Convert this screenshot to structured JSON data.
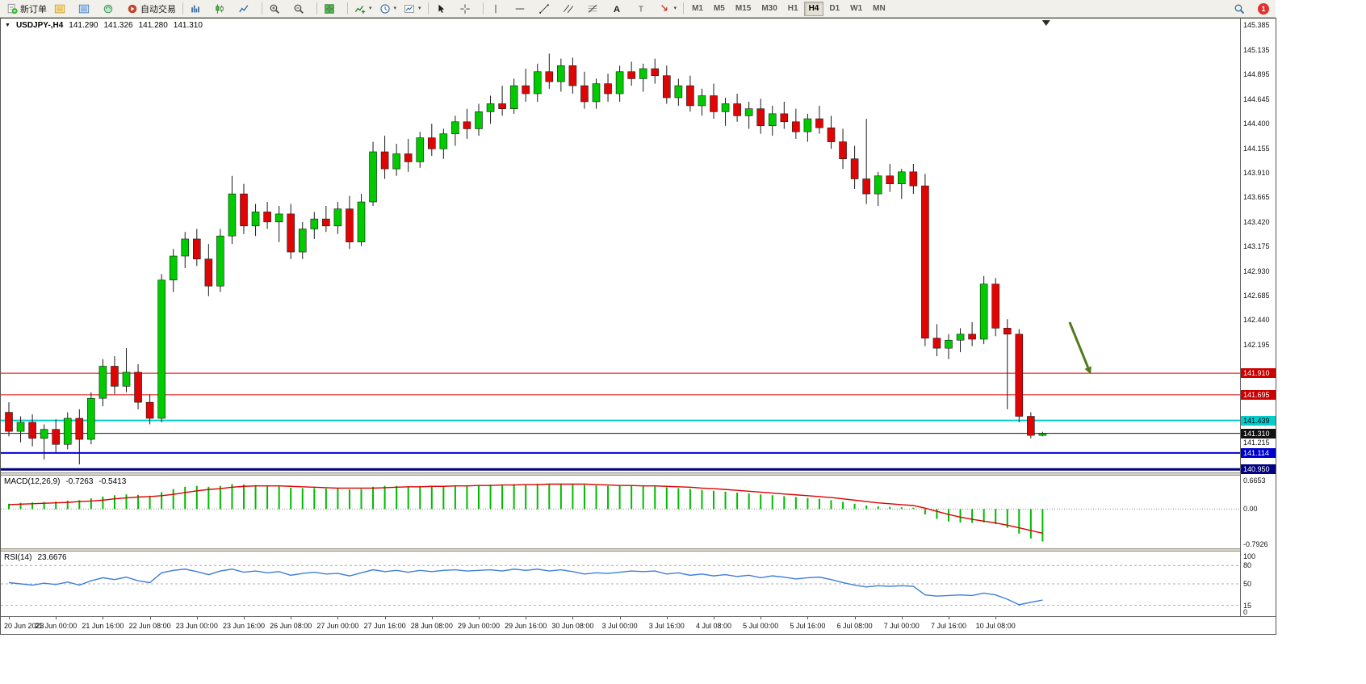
{
  "toolbar": {
    "groups": [
      {
        "items": [
          {
            "name": "new-order-button",
            "icon": "new-order-icon",
            "label": "新订单"
          },
          {
            "name": "market-watch-button",
            "icon": "market-watch-icon"
          },
          {
            "name": "data-window-button",
            "icon": "data-window-icon"
          },
          {
            "name": "navigator-button",
            "icon": "navigator-icon"
          },
          {
            "name": "autotrading-button",
            "icon": "autotrading-icon",
            "label": "自动交易"
          }
        ]
      },
      {
        "items": [
          {
            "name": "bar-chart-button",
            "icon": "bar-chart-icon"
          },
          {
            "name": "candlestick-chart-button",
            "icon": "candlestick-chart-icon"
          },
          {
            "name": "line-chart-button",
            "icon": "line-chart-icon"
          }
        ]
      },
      {
        "items": [
          {
            "name": "zoom-in-button",
            "icon": "zoom-in-icon"
          },
          {
            "name": "zoom-out-button",
            "icon": "zoom-out-icon"
          }
        ]
      },
      {
        "items": [
          {
            "name": "tile-windows-button",
            "icon": "tile-windows-icon"
          }
        ]
      },
      {
        "items": [
          {
            "name": "indicators-button",
            "icon": "indicators-icon",
            "dropdown": true
          },
          {
            "name": "periods-button",
            "icon": "periods-icon",
            "dropdown": true
          },
          {
            "name": "templates-button",
            "icon": "templates-icon",
            "dropdown": true
          }
        ]
      },
      {
        "items": [
          {
            "name": "cursor-button",
            "icon": "cursor-icon"
          },
          {
            "name": "crosshair-button",
            "icon": "crosshair-icon"
          }
        ]
      },
      {
        "items": [
          {
            "name": "vertical-line-button",
            "icon": "vline-icon"
          },
          {
            "name": "horizontal-line-button",
            "icon": "hline-icon"
          },
          {
            "name": "trendline-button",
            "icon": "trendline-icon"
          },
          {
            "name": "equidistant-channel-button",
            "icon": "channel-icon"
          },
          {
            "name": "fibonacci-button",
            "icon": "fibonacci-icon"
          },
          {
            "name": "text-button",
            "icon": "text-icon"
          },
          {
            "name": "text-label-button",
            "icon": "label-icon"
          },
          {
            "name": "arrows-button",
            "icon": "arrows-icon",
            "dropdown": true
          }
        ]
      }
    ],
    "timeframes": [
      "M1",
      "M5",
      "M15",
      "M30",
      "H1",
      "H4",
      "D1",
      "W1",
      "MN"
    ],
    "active_timeframe": "H4",
    "notification_count": "1"
  },
  "header": {
    "collapse_glyph": "▼",
    "symbol_period": "USDJPY-,H4",
    "open": "141.290",
    "high": "141.326",
    "low": "141.280",
    "close": "141.310"
  },
  "indicators": {
    "macd": {
      "label": "MACD(12,26,9)",
      "main": "-0.7263",
      "signal": "-0.5413",
      "axis": [
        "0.6653",
        "0.00",
        "-0.7926"
      ]
    },
    "rsi": {
      "label": "RSI(14)",
      "value": "23.6676",
      "axis": [
        "100",
        "80",
        "50",
        "15",
        "0"
      ]
    }
  },
  "price_axis": {
    "ticks": [
      "145.385",
      "145.135",
      "144.895",
      "144.645",
      "144.400",
      "144.155",
      "143.910",
      "143.665",
      "143.420",
      "143.175",
      "142.930",
      "142.685",
      "142.440",
      "142.195",
      "141.215"
    ]
  },
  "levels": [
    {
      "price": 141.91,
      "label": "141.910",
      "line_color": "#e00000",
      "label_bg": "#cc0000",
      "label_fg": "#ffffff",
      "width": 1,
      "name": "resistance-line-141910"
    },
    {
      "price": 141.695,
      "label": "141.695",
      "line_color": "#e00000",
      "label_bg": "#cc0000",
      "label_fg": "#ffffff",
      "width": 1,
      "name": "resistance-line-141695"
    },
    {
      "price": 141.439,
      "label": "141.439",
      "line_color": "#00cccc",
      "label_bg": "#00cccc",
      "label_fg": "#000000",
      "width": 2,
      "name": "support-line-141439"
    },
    {
      "price": 141.31,
      "label": "141.310",
      "line_color": "#151515",
      "label_bg": "#111111",
      "label_fg": "#ffffff",
      "width": 1,
      "name": "current-price-line"
    },
    {
      "price": 141.114,
      "label": "141.114",
      "line_color": "#0000dd",
      "label_bg": "#0000cc",
      "label_fg": "#ffffff",
      "width": 2,
      "name": "support-line-141114"
    },
    {
      "price": 140.95,
      "label": "140.950",
      "line_color": "#000080",
      "label_bg": "#000080",
      "label_fg": "#ffffff",
      "width": 3,
      "name": "support-line-140950"
    }
  ],
  "chart_data": [
    {
      "type": "candlestick",
      "title": "USDJPY-,H4",
      "ylim": [
        140.92,
        145.45
      ],
      "x_labels": [
        "20 Jun 2023",
        "21 Jun 00:00",
        "21 Jun 16:00",
        "22 Jun 08:00",
        "23 Jun 00:00",
        "23 Jun 16:00",
        "26 Jun 08:00",
        "27 Jun 00:00",
        "27 Jun 16:00",
        "28 Jun 08:00",
        "29 Jun 00:00",
        "29 Jun 16:00",
        "30 Jun 08:00",
        "3 Jul 00:00",
        "3 Jul 16:00",
        "4 Jul 08:00",
        "5 Jul 00:00",
        "5 Jul 16:00",
        "6 Jul 08:00",
        "7 Jul 00:00",
        "7 Jul 16:00",
        "10 Jul 08:00"
      ],
      "x_label_every": 4,
      "up_color": "#00ca00",
      "down_color": "#e00505",
      "ohlc": [
        [
          141.52,
          141.62,
          141.28,
          141.33
        ],
        [
          141.33,
          141.48,
          141.22,
          141.42
        ],
        [
          141.42,
          141.5,
          141.18,
          141.26
        ],
        [
          141.26,
          141.4,
          141.05,
          141.35
        ],
        [
          141.35,
          141.45,
          141.12,
          141.2
        ],
        [
          141.2,
          141.52,
          141.15,
          141.46
        ],
        [
          141.46,
          141.55,
          141.0,
          141.25
        ],
        [
          141.25,
          141.72,
          141.2,
          141.66
        ],
        [
          141.66,
          142.05,
          141.58,
          141.98
        ],
        [
          141.98,
          142.08,
          141.7,
          141.78
        ],
        [
          141.78,
          142.16,
          141.72,
          141.92
        ],
        [
          141.92,
          142.0,
          141.55,
          141.62
        ],
        [
          141.62,
          141.7,
          141.4,
          141.46
        ],
        [
          141.46,
          142.9,
          141.42,
          142.84
        ],
        [
          142.84,
          143.15,
          142.72,
          143.08
        ],
        [
          143.08,
          143.32,
          142.96,
          143.25
        ],
        [
          143.25,
          143.35,
          142.98,
          143.05
        ],
        [
          143.05,
          143.2,
          142.68,
          142.78
        ],
        [
          142.78,
          143.35,
          142.72,
          143.28
        ],
        [
          143.28,
          143.88,
          143.2,
          143.7
        ],
        [
          143.7,
          143.8,
          143.3,
          143.38
        ],
        [
          143.38,
          143.6,
          143.28,
          143.52
        ],
        [
          143.52,
          143.62,
          143.35,
          143.42
        ],
        [
          143.42,
          143.58,
          143.22,
          143.5
        ],
        [
          143.5,
          143.6,
          143.05,
          143.12
        ],
        [
          143.12,
          143.42,
          143.05,
          143.35
        ],
        [
          143.35,
          143.52,
          143.25,
          143.45
        ],
        [
          143.45,
          143.58,
          143.32,
          143.38
        ],
        [
          143.38,
          143.62,
          143.3,
          143.55
        ],
        [
          143.55,
          143.68,
          143.15,
          143.22
        ],
        [
          143.22,
          143.7,
          143.18,
          143.62
        ],
        [
          143.62,
          144.22,
          143.58,
          144.12
        ],
        [
          144.12,
          144.28,
          143.85,
          143.95
        ],
        [
          143.95,
          144.2,
          143.88,
          144.1
        ],
        [
          144.1,
          144.25,
          143.92,
          144.02
        ],
        [
          144.02,
          144.32,
          143.96,
          144.26
        ],
        [
          144.26,
          144.4,
          144.08,
          144.15
        ],
        [
          144.15,
          144.35,
          144.05,
          144.3
        ],
        [
          144.3,
          144.48,
          144.18,
          144.42
        ],
        [
          144.42,
          144.55,
          144.25,
          144.35
        ],
        [
          144.35,
          144.6,
          144.28,
          144.52
        ],
        [
          144.52,
          144.68,
          144.4,
          144.6
        ],
        [
          144.6,
          144.78,
          144.48,
          144.55
        ],
        [
          144.55,
          144.85,
          144.5,
          144.78
        ],
        [
          144.78,
          144.95,
          144.62,
          144.7
        ],
        [
          144.7,
          145.0,
          144.62,
          144.92
        ],
        [
          144.92,
          145.1,
          144.75,
          144.82
        ],
        [
          144.82,
          145.05,
          144.72,
          144.98
        ],
        [
          144.98,
          145.06,
          144.7,
          144.78
        ],
        [
          144.78,
          144.92,
          144.55,
          144.62
        ],
        [
          144.62,
          144.85,
          144.55,
          144.8
        ],
        [
          144.8,
          144.9,
          144.62,
          144.7
        ],
        [
          144.7,
          144.98,
          144.62,
          144.92
        ],
        [
          144.92,
          145.02,
          144.78,
          144.85
        ],
        [
          144.85,
          145.0,
          144.72,
          144.95
        ],
        [
          144.95,
          145.05,
          144.8,
          144.88
        ],
        [
          144.88,
          144.98,
          144.6,
          144.66
        ],
        [
          144.66,
          144.85,
          144.58,
          144.78
        ],
        [
          144.78,
          144.88,
          144.52,
          144.58
        ],
        [
          144.58,
          144.75,
          144.48,
          144.68
        ],
        [
          144.68,
          144.8,
          144.45,
          144.52
        ],
        [
          144.52,
          144.66,
          144.38,
          144.6
        ],
        [
          144.6,
          144.7,
          144.42,
          144.48
        ],
        [
          144.48,
          144.62,
          144.35,
          144.55
        ],
        [
          144.55,
          144.65,
          144.3,
          144.38
        ],
        [
          144.38,
          144.58,
          144.28,
          144.5
        ],
        [
          144.5,
          144.62,
          144.35,
          144.42
        ],
        [
          144.42,
          144.55,
          144.25,
          144.32
        ],
        [
          144.32,
          144.5,
          144.22,
          144.45
        ],
        [
          144.45,
          144.58,
          144.3,
          144.36
        ],
        [
          144.36,
          144.48,
          144.15,
          144.22
        ],
        [
          144.22,
          144.35,
          143.95,
          144.05
        ],
        [
          144.05,
          144.18,
          143.75,
          143.85
        ],
        [
          143.85,
          144.45,
          143.6,
          143.7
        ],
        [
          143.7,
          143.92,
          143.58,
          143.88
        ],
        [
          143.88,
          144.0,
          143.72,
          143.8
        ],
        [
          143.8,
          143.95,
          143.65,
          143.92
        ],
        [
          143.92,
          144.0,
          143.7,
          143.78
        ],
        [
          143.78,
          143.9,
          142.18,
          142.26
        ],
        [
          142.26,
          142.4,
          142.08,
          142.16
        ],
        [
          142.16,
          142.3,
          142.05,
          142.24
        ],
        [
          142.24,
          142.36,
          142.12,
          142.3
        ],
        [
          142.3,
          142.42,
          142.18,
          142.25
        ],
        [
          142.25,
          142.88,
          142.2,
          142.8
        ],
        [
          142.8,
          142.86,
          142.28,
          142.36
        ],
        [
          142.36,
          142.45,
          141.55,
          142.3
        ],
        [
          142.3,
          142.35,
          141.42,
          141.48
        ],
        [
          141.48,
          141.52,
          141.26,
          141.29
        ],
        [
          141.29,
          141.326,
          141.28,
          141.31
        ]
      ],
      "annotations": [
        {
          "type": "arrow",
          "color": "#4f7a1d",
          "from": {
            "index": 90.3,
            "price": 142.42
          },
          "to": {
            "index": 92.1,
            "price": 141.9
          }
        }
      ],
      "shift_marker_index": 88.3
    },
    {
      "type": "bar+line",
      "name": "MACD(12,26,9)",
      "ylim": [
        -0.88,
        0.75
      ],
      "histogram_color": "#00bb00",
      "signal_color": "#dd0000",
      "current_main": -0.7263,
      "current_signal": -0.5413,
      "main": [
        0.12,
        0.14,
        0.15,
        0.16,
        0.17,
        0.19,
        0.2,
        0.24,
        0.28,
        0.31,
        0.33,
        0.32,
        0.3,
        0.38,
        0.45,
        0.5,
        0.52,
        0.5,
        0.52,
        0.56,
        0.55,
        0.54,
        0.52,
        0.51,
        0.48,
        0.47,
        0.47,
        0.46,
        0.46,
        0.44,
        0.45,
        0.5,
        0.52,
        0.52,
        0.51,
        0.52,
        0.52,
        0.52,
        0.53,
        0.53,
        0.54,
        0.55,
        0.55,
        0.56,
        0.56,
        0.57,
        0.57,
        0.57,
        0.56,
        0.54,
        0.53,
        0.52,
        0.52,
        0.52,
        0.51,
        0.51,
        0.49,
        0.47,
        0.45,
        0.43,
        0.41,
        0.39,
        0.37,
        0.35,
        0.33,
        0.31,
        0.29,
        0.27,
        0.25,
        0.23,
        0.2,
        0.16,
        0.12,
        0.08,
        0.06,
        0.05,
        0.04,
        0.03,
        -0.12,
        -0.22,
        -0.28,
        -0.3,
        -0.31,
        -0.3,
        -0.34,
        -0.42,
        -0.55,
        -0.66,
        -0.7263
      ],
      "signal": [
        0.1,
        0.11,
        0.12,
        0.13,
        0.14,
        0.15,
        0.17,
        0.18,
        0.2,
        0.23,
        0.25,
        0.27,
        0.28,
        0.3,
        0.33,
        0.37,
        0.41,
        0.44,
        0.46,
        0.49,
        0.51,
        0.52,
        0.52,
        0.52,
        0.51,
        0.5,
        0.49,
        0.48,
        0.47,
        0.47,
        0.47,
        0.47,
        0.48,
        0.49,
        0.5,
        0.5,
        0.51,
        0.51,
        0.52,
        0.52,
        0.53,
        0.53,
        0.54,
        0.54,
        0.55,
        0.55,
        0.56,
        0.56,
        0.56,
        0.56,
        0.55,
        0.54,
        0.53,
        0.53,
        0.52,
        0.52,
        0.51,
        0.5,
        0.49,
        0.47,
        0.46,
        0.44,
        0.42,
        0.4,
        0.38,
        0.36,
        0.34,
        0.32,
        0.3,
        0.28,
        0.26,
        0.23,
        0.2,
        0.17,
        0.14,
        0.12,
        0.1,
        0.08,
        0.02,
        -0.05,
        -0.12,
        -0.18,
        -0.23,
        -0.27,
        -0.31,
        -0.36,
        -0.42,
        -0.48,
        -0.5413
      ]
    },
    {
      "type": "line",
      "name": "RSI(14)",
      "ylim": [
        0,
        100
      ],
      "line_color": "#3d7edb",
      "level_lines": [
        80,
        50,
        15
      ],
      "current": 23.6676,
      "values": [
        52,
        50,
        48,
        51,
        49,
        53,
        48,
        55,
        60,
        57,
        61,
        55,
        52,
        68,
        72,
        74,
        70,
        65,
        71,
        74,
        69,
        71,
        68,
        70,
        64,
        67,
        69,
        66,
        67,
        63,
        68,
        73,
        70,
        72,
        69,
        72,
        70,
        72,
        73,
        71,
        72,
        73,
        71,
        74,
        72,
        74,
        71,
        73,
        70,
        66,
        68,
        67,
        69,
        71,
        70,
        71,
        66,
        68,
        64,
        66,
        63,
        65,
        62,
        64,
        60,
        63,
        61,
        58,
        60,
        61,
        57,
        52,
        48,
        45,
        47,
        46,
        47,
        46,
        32,
        30,
        31,
        32,
        31,
        35,
        32,
        25,
        16,
        20,
        23.6676
      ]
    }
  ]
}
